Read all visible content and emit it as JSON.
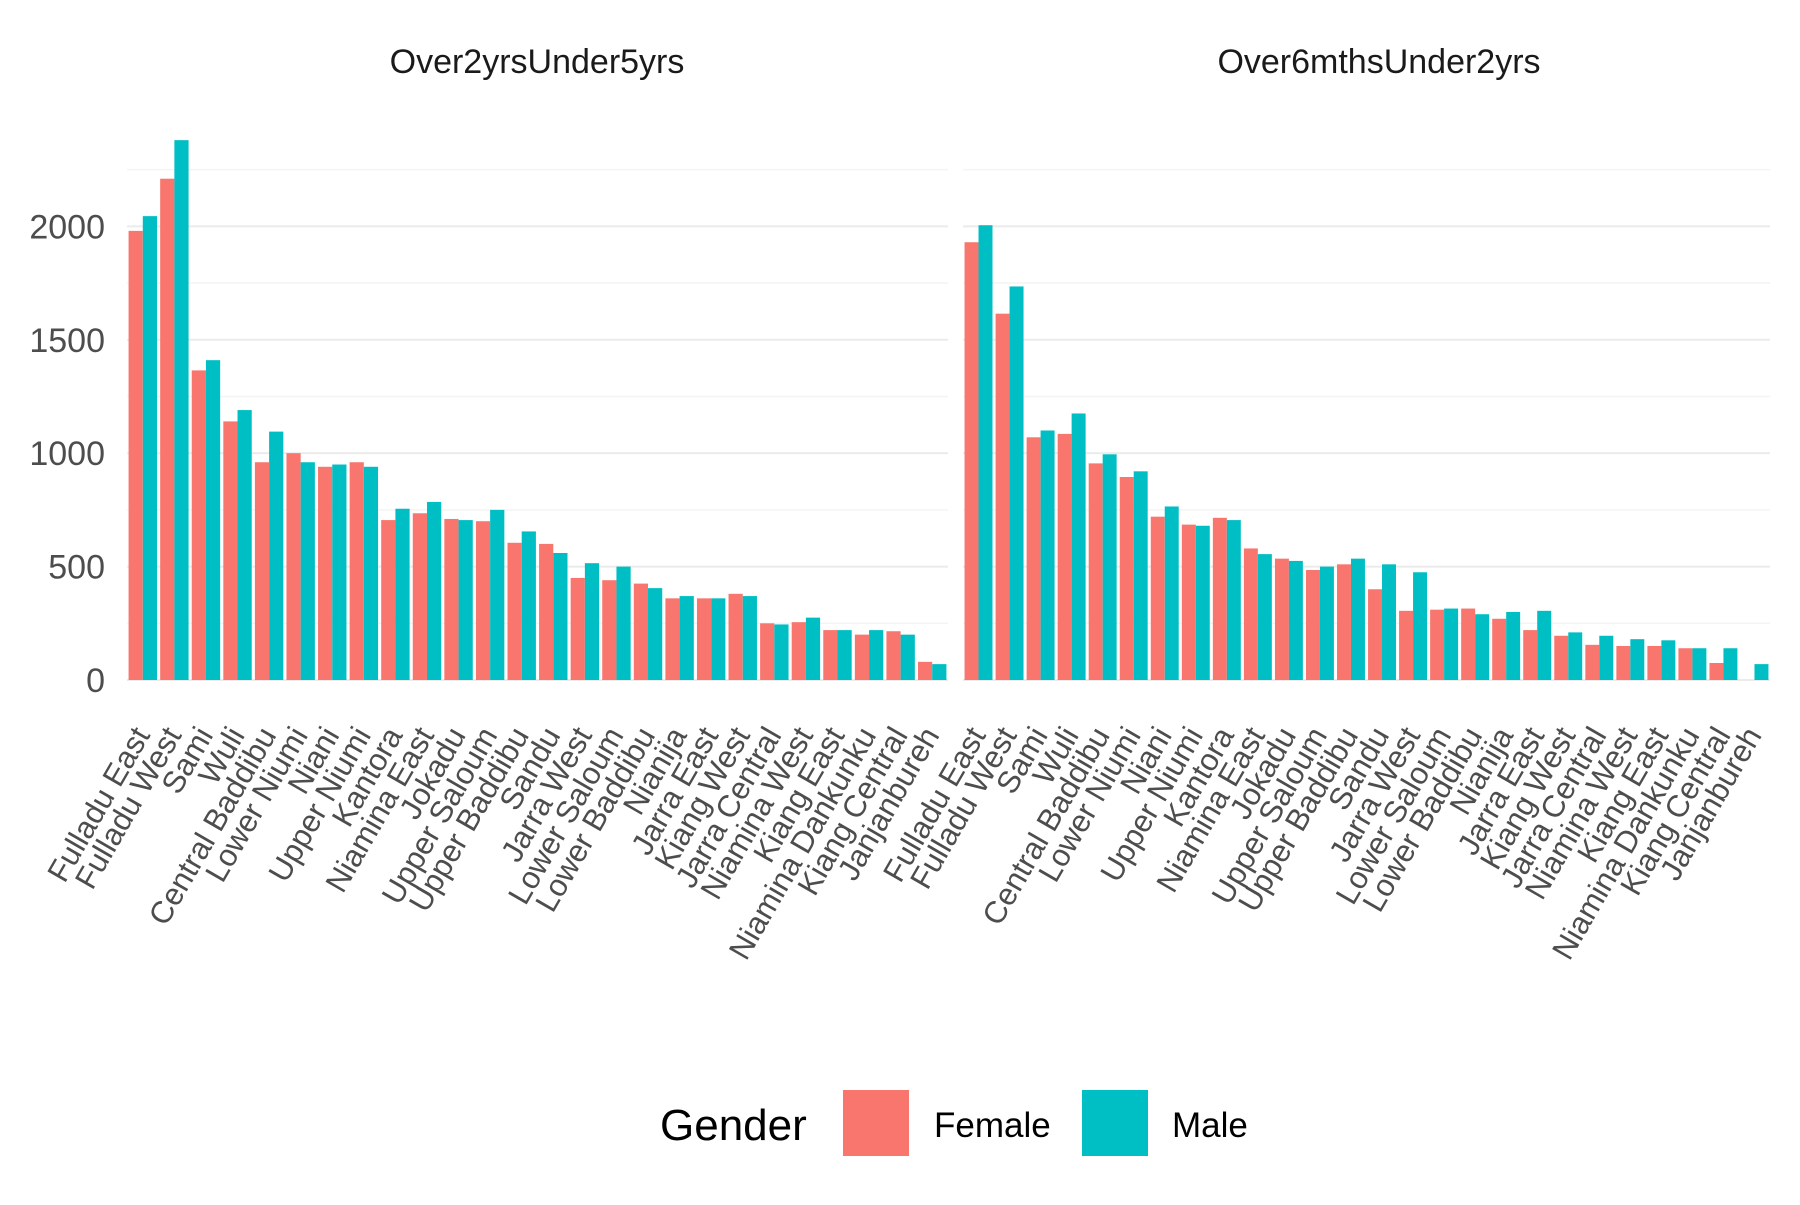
{
  "chart_data": {
    "type": "bar",
    "ylim": [
      0,
      2460
    ],
    "y_ticks": [
      0,
      500,
      1000,
      1500,
      2000
    ],
    "grid": true,
    "legend": {
      "title": "Gender",
      "position": "bottom",
      "items": [
        {
          "name": "Female",
          "color": "#F8766D"
        },
        {
          "name": "Male",
          "color": "#00BFC4"
        }
      ]
    },
    "categories": [
      "Fulladu East",
      "Fulladu West",
      "Sami",
      "Wuli",
      "Central Baddibu",
      "Lower Niumi",
      "Niani",
      "Upper Niumi",
      "Kantora",
      "Niamina East",
      "Jokadu",
      "Upper Saloum",
      "Upper Baddibu",
      "Sandu",
      "Jarra West",
      "Lower Saloum",
      "Lower Baddibu",
      "Nianija",
      "Jarra East",
      "Kiang West",
      "Jarra Central",
      "Niamina West",
      "Kiang East",
      "Niamina Dankunku",
      "Kiang Central",
      "Janjanbureh"
    ],
    "panels": [
      {
        "title": "Over2yrsUnder5yrs",
        "series": [
          {
            "name": "Female",
            "values": [
              1980,
              2210,
              1365,
              1140,
              960,
              1000,
              940,
              960,
              705,
              735,
              710,
              700,
              605,
              600,
              450,
              440,
              425,
              360,
              360,
              380,
              250,
              255,
              220,
              200,
              215,
              80
            ]
          },
          {
            "name": "Male",
            "values": [
              2045,
              2380,
              1410,
              1190,
              1095,
              960,
              950,
              940,
              755,
              785,
              705,
              750,
              655,
              560,
              515,
              500,
              405,
              370,
              360,
              370,
              245,
              275,
              220,
              220,
              200,
              70
            ]
          }
        ]
      },
      {
        "title": "Over6mthsUnder2yrs",
        "series": [
          {
            "name": "Female",
            "values": [
              1930,
              1615,
              1070,
              1085,
              955,
              895,
              720,
              685,
              715,
              580,
              535,
              485,
              510,
              400,
              305,
              310,
              315,
              270,
              220,
              195,
              155,
              150,
              150,
              140,
              75,
              0
            ]
          },
          {
            "name": "Male",
            "values": [
              2005,
              1735,
              1100,
              1175,
              995,
              920,
              765,
              680,
              705,
              555,
              525,
              500,
              535,
              510,
              475,
              315,
              290,
              300,
              305,
              210,
              195,
              180,
              175,
              140,
              140,
              70
            ]
          }
        ]
      }
    ]
  }
}
